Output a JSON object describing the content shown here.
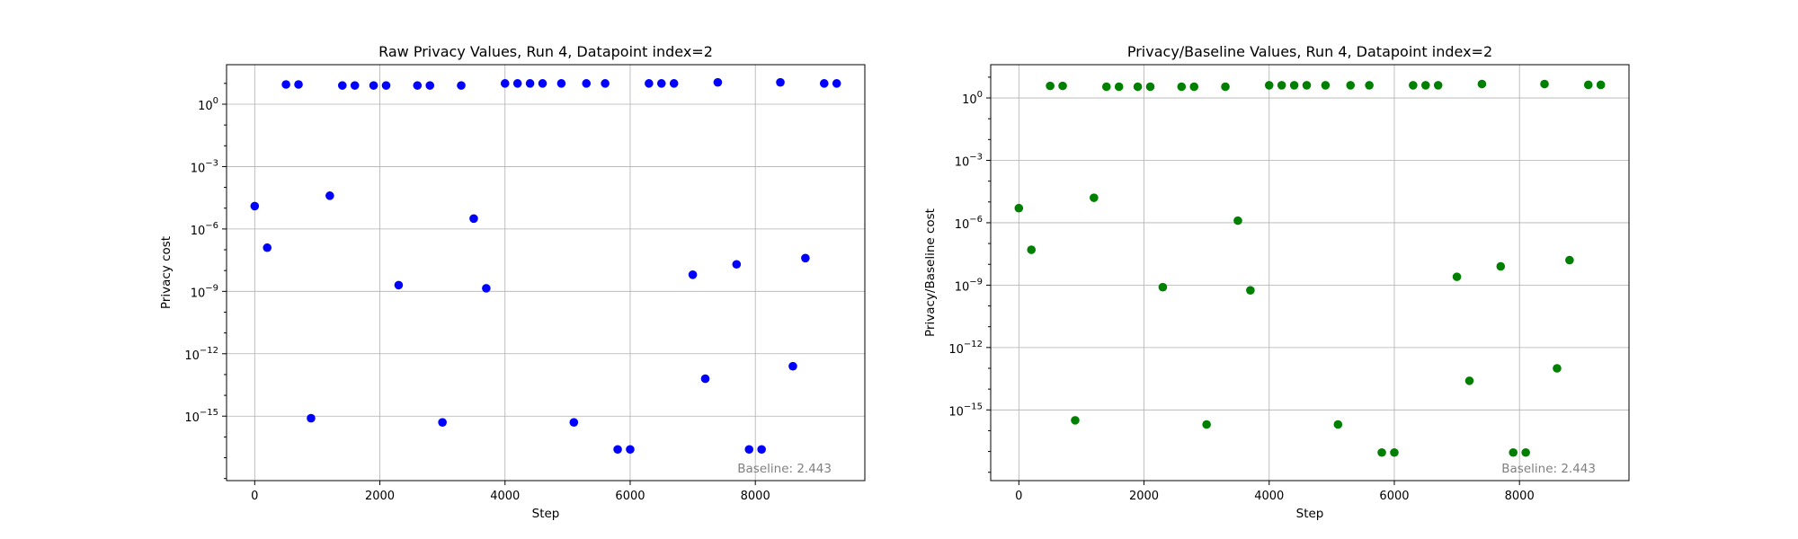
{
  "chart_data": [
    {
      "type": "scatter",
      "title": "Raw Privacy Values, Run 4, Datapoint index=2",
      "xlabel": "Step",
      "ylabel": "Privacy cost",
      "yscale": "log",
      "xlim": [
        -450,
        9750
      ],
      "ylim_exp": [
        -18.1,
        1.9
      ],
      "xticks": [
        0,
        2000,
        4000,
        6000,
        8000
      ],
      "ytick_exps": [
        0,
        -3,
        -6,
        -9,
        -12,
        -15
      ],
      "grid": true,
      "color": "#0000ff",
      "annotation": "Baseline: 2.443",
      "points": [
        {
          "x": 0,
          "exp": -4.9
        },
        {
          "x": 200,
          "exp": -6.9
        },
        {
          "x": 500,
          "exp": 0.95
        },
        {
          "x": 700,
          "exp": 0.95
        },
        {
          "x": 900,
          "exp": -15.1
        },
        {
          "x": 1200,
          "exp": -4.4
        },
        {
          "x": 1400,
          "exp": 0.9
        },
        {
          "x": 1600,
          "exp": 0.9
        },
        {
          "x": 1900,
          "exp": 0.9
        },
        {
          "x": 2100,
          "exp": 0.9
        },
        {
          "x": 2300,
          "exp": -8.7
        },
        {
          "x": 2600,
          "exp": 0.9
        },
        {
          "x": 2800,
          "exp": 0.9
        },
        {
          "x": 3000,
          "exp": -15.3
        },
        {
          "x": 3300,
          "exp": 0.9
        },
        {
          "x": 3500,
          "exp": -5.5
        },
        {
          "x": 3700,
          "exp": -8.85
        },
        {
          "x": 4000,
          "exp": 1.0
        },
        {
          "x": 4200,
          "exp": 1.0
        },
        {
          "x": 4400,
          "exp": 1.0
        },
        {
          "x": 4600,
          "exp": 1.0
        },
        {
          "x": 4900,
          "exp": 1.0
        },
        {
          "x": 5100,
          "exp": -15.3
        },
        {
          "x": 5300,
          "exp": 1.0
        },
        {
          "x": 5600,
          "exp": 1.0
        },
        {
          "x": 5800,
          "exp": -16.6
        },
        {
          "x": 6000,
          "exp": -16.6
        },
        {
          "x": 6300,
          "exp": 1.0
        },
        {
          "x": 6500,
          "exp": 1.0
        },
        {
          "x": 6700,
          "exp": 1.0
        },
        {
          "x": 7000,
          "exp": -8.2
        },
        {
          "x": 7200,
          "exp": -13.2
        },
        {
          "x": 7400,
          "exp": 1.05
        },
        {
          "x": 7700,
          "exp": -7.7
        },
        {
          "x": 7900,
          "exp": -16.6
        },
        {
          "x": 8100,
          "exp": -16.6
        },
        {
          "x": 8400,
          "exp": 1.05
        },
        {
          "x": 8600,
          "exp": -12.6
        },
        {
          "x": 8800,
          "exp": -7.4
        },
        {
          "x": 9100,
          "exp": 1.0
        },
        {
          "x": 9300,
          "exp": 1.0
        }
      ]
    },
    {
      "type": "scatter",
      "title": "Privacy/Baseline Values, Run 4, Datapoint index=2",
      "xlabel": "Step",
      "ylabel": "Privacy/Baseline cost",
      "yscale": "log",
      "xlim": [
        -450,
        9750
      ],
      "ylim_exp": [
        -18.4,
        1.6
      ],
      "xticks": [
        0,
        2000,
        4000,
        6000,
        8000
      ],
      "ytick_exps": [
        0,
        -3,
        -6,
        -9,
        -12,
        -15
      ],
      "grid": true,
      "color": "#008000",
      "annotation": "Baseline: 2.443",
      "points": [
        {
          "x": 0,
          "exp": -5.3
        },
        {
          "x": 200,
          "exp": -7.3
        },
        {
          "x": 500,
          "exp": 0.58
        },
        {
          "x": 700,
          "exp": 0.58
        },
        {
          "x": 900,
          "exp": -15.5
        },
        {
          "x": 1200,
          "exp": -4.8
        },
        {
          "x": 1400,
          "exp": 0.54
        },
        {
          "x": 1600,
          "exp": 0.54
        },
        {
          "x": 1900,
          "exp": 0.54
        },
        {
          "x": 2100,
          "exp": 0.54
        },
        {
          "x": 2300,
          "exp": -9.1
        },
        {
          "x": 2600,
          "exp": 0.54
        },
        {
          "x": 2800,
          "exp": 0.54
        },
        {
          "x": 3000,
          "exp": -15.7
        },
        {
          "x": 3300,
          "exp": 0.54
        },
        {
          "x": 3500,
          "exp": -5.9
        },
        {
          "x": 3700,
          "exp": -9.25
        },
        {
          "x": 4000,
          "exp": 0.61
        },
        {
          "x": 4200,
          "exp": 0.61
        },
        {
          "x": 4400,
          "exp": 0.61
        },
        {
          "x": 4600,
          "exp": 0.61
        },
        {
          "x": 4900,
          "exp": 0.61
        },
        {
          "x": 5100,
          "exp": -15.7
        },
        {
          "x": 5300,
          "exp": 0.61
        },
        {
          "x": 5600,
          "exp": 0.61
        },
        {
          "x": 5800,
          "exp": -17.05
        },
        {
          "x": 6000,
          "exp": -17.05
        },
        {
          "x": 6300,
          "exp": 0.61
        },
        {
          "x": 6500,
          "exp": 0.61
        },
        {
          "x": 6700,
          "exp": 0.61
        },
        {
          "x": 7000,
          "exp": -8.6
        },
        {
          "x": 7200,
          "exp": -13.6
        },
        {
          "x": 7400,
          "exp": 0.67
        },
        {
          "x": 7700,
          "exp": -8.1
        },
        {
          "x": 7900,
          "exp": -17.05
        },
        {
          "x": 8100,
          "exp": -17.05
        },
        {
          "x": 8400,
          "exp": 0.67
        },
        {
          "x": 8600,
          "exp": -13.0
        },
        {
          "x": 8800,
          "exp": -7.8
        },
        {
          "x": 9100,
          "exp": 0.63
        },
        {
          "x": 9300,
          "exp": 0.63
        }
      ]
    }
  ]
}
